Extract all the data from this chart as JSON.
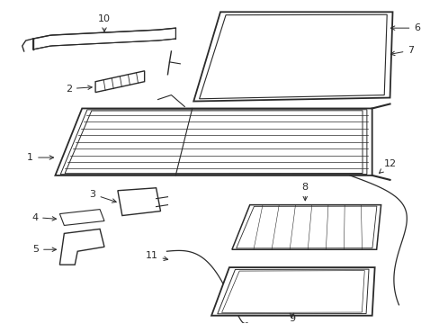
{
  "background_color": "#ffffff",
  "line_color": "#2a2a2a",
  "fig_width": 4.89,
  "fig_height": 3.6,
  "dpi": 100
}
